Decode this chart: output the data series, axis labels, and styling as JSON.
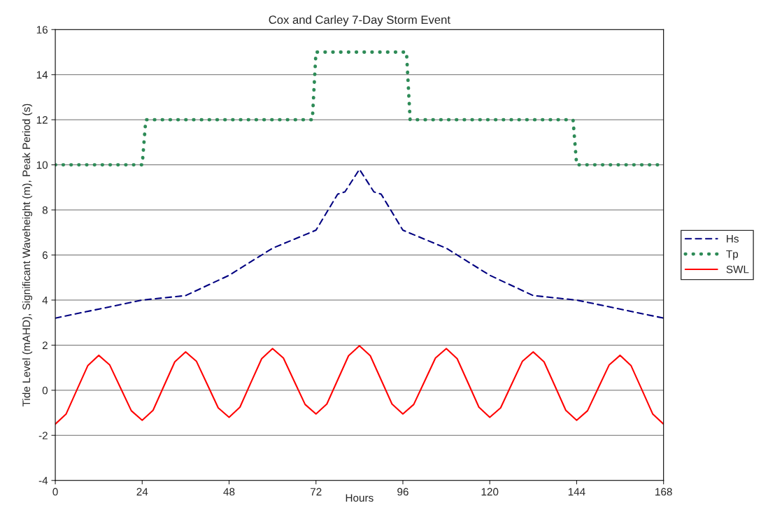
{
  "chart_data": {
    "type": "line",
    "title": "Cox and Carley 7-Day Storm Event",
    "xlabel": "Hours",
    "ylabel": "Tide Level (mAHD), Significant Waveheight (m), Peak Period (s)",
    "xlim": [
      0,
      168
    ],
    "xticks": [
      0,
      24,
      48,
      72,
      96,
      120,
      144,
      168
    ],
    "ylim": [
      -4,
      16
    ],
    "yticks": [
      -4,
      -2,
      0,
      2,
      4,
      6,
      8,
      10,
      12,
      14,
      16
    ],
    "grid": "y",
    "legend": "right",
    "series": [
      {
        "name": "Hs",
        "color": "#000080",
        "line_style": "dashed",
        "x": [
          0,
          24,
          36,
          48,
          60,
          72,
          78,
          80,
          84,
          88,
          90,
          96,
          108,
          120,
          132,
          144,
          168
        ],
        "values": [
          3.2,
          4.0,
          4.2,
          5.1,
          6.3,
          7.1,
          8.7,
          8.8,
          9.8,
          8.8,
          8.7,
          7.1,
          6.3,
          5.1,
          4.2,
          4.0,
          3.2
        ]
      },
      {
        "name": "Tp",
        "color": "#2e8b57",
        "line_style": "dotted",
        "x": [
          0,
          24,
          25,
          71,
          72,
          96,
          97,
          98,
          143,
          144,
          168
        ],
        "values": [
          10,
          10,
          12,
          12,
          15,
          15,
          15,
          12,
          12,
          10,
          10
        ]
      },
      {
        "name": "SWL",
        "color": "#ff0000",
        "line_style": "solid",
        "x": [
          0,
          3,
          6,
          9,
          12,
          15,
          18,
          21,
          24,
          27,
          30,
          33,
          36,
          39,
          42,
          45,
          48,
          51,
          54,
          57,
          60,
          63,
          66,
          69,
          72,
          75,
          78,
          81,
          84,
          87,
          90,
          93,
          96,
          99,
          102,
          105,
          108,
          111,
          114,
          117,
          120,
          123,
          126,
          129,
          132,
          135,
          138,
          141,
          144,
          147,
          150,
          153,
          156,
          159,
          162,
          165,
          168
        ],
        "values": [
          -1.5,
          -1.05,
          0.03,
          1.1,
          1.55,
          1.13,
          0.11,
          -0.91,
          -1.33,
          -0.89,
          0.19,
          1.26,
          1.7,
          1.28,
          0.25,
          -0.78,
          -1.2,
          -0.75,
          0.33,
          1.4,
          1.85,
          1.43,
          0.4,
          -0.63,
          -1.05,
          -0.61,
          0.46,
          1.53,
          1.97,
          1.53,
          0.46,
          -0.61,
          -1.05,
          -0.63,
          0.4,
          1.43,
          1.85,
          1.4,
          0.33,
          -0.75,
          -1.2,
          -0.78,
          0.25,
          1.28,
          1.7,
          1.26,
          0.19,
          -0.89,
          -1.33,
          -0.91,
          0.11,
          1.13,
          1.55,
          1.1,
          0.03,
          -1.05,
          -1.5
        ]
      }
    ]
  }
}
